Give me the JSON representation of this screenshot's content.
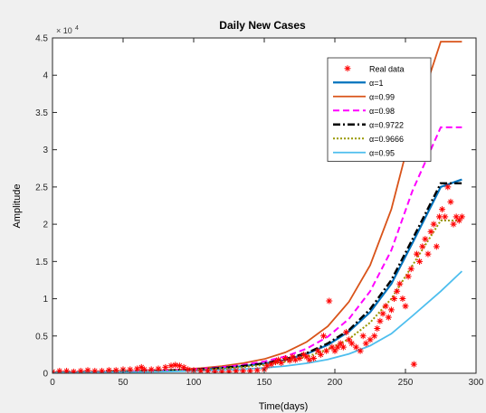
{
  "chart_data": {
    "type": "line",
    "title": "Daily New Cases",
    "xlabel": "Time(days)",
    "ylabel": "Amplitude",
    "exponent_label": "× 10",
    "exponent_power": "4",
    "xlim": [
      0,
      300
    ],
    "ylim": [
      0,
      4.5
    ],
    "xticks": [
      0,
      50,
      100,
      150,
      200,
      250,
      300
    ],
    "yticks": [
      0,
      0.5,
      1,
      1.5,
      2,
      2.5,
      3,
      3.5,
      4,
      4.5
    ],
    "xtick_labels": [
      "0",
      "50",
      "100",
      "150",
      "200",
      "250",
      "300"
    ],
    "ytick_labels": [
      "0",
      "0.5",
      "1",
      "1.5",
      "2",
      "2.5",
      "3",
      "3.5",
      "4",
      "4.5"
    ],
    "grid": false,
    "legend_position": "top-right",
    "scatter": {
      "name": "Real data",
      "color": "#ff0000",
      "points": [
        [
          0,
          0.02
        ],
        [
          5,
          0.03
        ],
        [
          10,
          0.03
        ],
        [
          15,
          0.02
        ],
        [
          20,
          0.03
        ],
        [
          25,
          0.04
        ],
        [
          30,
          0.03
        ],
        [
          35,
          0.03
        ],
        [
          40,
          0.04
        ],
        [
          45,
          0.04
        ],
        [
          50,
          0.05
        ],
        [
          55,
          0.05
        ],
        [
          60,
          0.06
        ],
        [
          63,
          0.08
        ],
        [
          65,
          0.05
        ],
        [
          70,
          0.05
        ],
        [
          75,
          0.06
        ],
        [
          80,
          0.08
        ],
        [
          84,
          0.1
        ],
        [
          87,
          0.11
        ],
        [
          90,
          0.1
        ],
        [
          93,
          0.08
        ],
        [
          96,
          0.05
        ],
        [
          100,
          0.04
        ],
        [
          105,
          0.03
        ],
        [
          110,
          0.03
        ],
        [
          115,
          0.02
        ],
        [
          120,
          0.02
        ],
        [
          125,
          0.02
        ],
        [
          130,
          0.03
        ],
        [
          135,
          0.03
        ],
        [
          140,
          0.03
        ],
        [
          145,
          0.04
        ],
        [
          150,
          0.05
        ],
        [
          152,
          0.1
        ],
        [
          155,
          0.12
        ],
        [
          158,
          0.15
        ],
        [
          160,
          0.18
        ],
        [
          162,
          0.14
        ],
        [
          165,
          0.2
        ],
        [
          168,
          0.17
        ],
        [
          170,
          0.22
        ],
        [
          172,
          0.18
        ],
        [
          175,
          0.2
        ],
        [
          178,
          0.25
        ],
        [
          180,
          0.22
        ],
        [
          182,
          0.18
        ],
        [
          185,
          0.2
        ],
        [
          188,
          0.3
        ],
        [
          190,
          0.25
        ],
        [
          192,
          0.5
        ],
        [
          194,
          0.3
        ],
        [
          196,
          0.97
        ],
        [
          198,
          0.35
        ],
        [
          200,
          0.3
        ],
        [
          202,
          0.35
        ],
        [
          204,
          0.4
        ],
        [
          206,
          0.35
        ],
        [
          208,
          0.55
        ],
        [
          210,
          0.45
        ],
        [
          212,
          0.4
        ],
        [
          215,
          0.35
        ],
        [
          218,
          0.3
        ],
        [
          220,
          0.5
        ],
        [
          222,
          0.4
        ],
        [
          225,
          0.45
        ],
        [
          228,
          0.5
        ],
        [
          230,
          0.6
        ],
        [
          232,
          0.7
        ],
        [
          234,
          0.8
        ],
        [
          236,
          0.9
        ],
        [
          238,
          0.75
        ],
        [
          240,
          0.85
        ],
        [
          242,
          1.0
        ],
        [
          244,
          1.1
        ],
        [
          246,
          1.2
        ],
        [
          248,
          1.0
        ],
        [
          250,
          0.9
        ],
        [
          252,
          1.3
        ],
        [
          254,
          1.4
        ],
        [
          256,
          0.12
        ],
        [
          258,
          1.6
        ],
        [
          260,
          1.5
        ],
        [
          262,
          1.7
        ],
        [
          264,
          1.8
        ],
        [
          266,
          1.6
        ],
        [
          268,
          1.9
        ],
        [
          270,
          2.0
        ],
        [
          272,
          1.7
        ],
        [
          274,
          2.1
        ],
        [
          276,
          2.2
        ],
        [
          278,
          2.1
        ],
        [
          280,
          2.5
        ],
        [
          282,
          2.3
        ],
        [
          284,
          2.0
        ],
        [
          286,
          2.1
        ],
        [
          288,
          2.05
        ],
        [
          290,
          2.1
        ]
      ]
    },
    "series": [
      {
        "name": "α=1",
        "color": "#0072bd",
        "dash": "solid",
        "width": 2.2,
        "values": [
          0.01,
          0.012,
          0.015,
          0.019,
          0.024,
          0.03,
          0.04,
          0.052,
          0.07,
          0.095,
          0.13,
          0.18,
          0.26,
          0.38,
          0.56,
          0.82,
          1.2,
          1.75,
          2.5,
          2.6
        ]
      },
      {
        "name": "α=0.99",
        "color": "#d95319",
        "dash": "solid",
        "width": 1.8,
        "values": [
          0.01,
          0.013,
          0.017,
          0.022,
          0.029,
          0.038,
          0.05,
          0.068,
          0.095,
          0.135,
          0.19,
          0.28,
          0.42,
          0.63,
          0.96,
          1.45,
          2.2,
          3.3,
          4.45,
          4.45
        ]
      },
      {
        "name": "α=0.98",
        "color": "#ff00ff",
        "dash": "dashed",
        "width": 2,
        "values": [
          0.01,
          0.012,
          0.016,
          0.02,
          0.026,
          0.034,
          0.045,
          0.06,
          0.082,
          0.113,
          0.158,
          0.225,
          0.33,
          0.49,
          0.73,
          1.1,
          1.65,
          2.45,
          3.3,
          3.3
        ]
      },
      {
        "name": "α=0.9722",
        "color": "#000000",
        "dash": "dashdot",
        "width": 2.4,
        "values": [
          0.01,
          0.012,
          0.015,
          0.019,
          0.024,
          0.031,
          0.04,
          0.053,
          0.071,
          0.097,
          0.134,
          0.19,
          0.27,
          0.4,
          0.58,
          0.86,
          1.25,
          1.8,
          2.55,
          2.55
        ]
      },
      {
        "name": "α=0.9666",
        "color": "#999900",
        "dash": "dotted",
        "width": 2,
        "values": [
          0.01,
          0.011,
          0.014,
          0.017,
          0.021,
          0.027,
          0.035,
          0.046,
          0.061,
          0.082,
          0.112,
          0.155,
          0.22,
          0.32,
          0.46,
          0.68,
          1.0,
          1.45,
          2.05,
          2.05
        ]
      },
      {
        "name": "α=0.95",
        "color": "#4dbeee",
        "dash": "solid",
        "width": 1.8,
        "values": [
          0.01,
          0.011,
          0.012,
          0.014,
          0.017,
          0.021,
          0.026,
          0.033,
          0.042,
          0.055,
          0.072,
          0.097,
          0.133,
          0.185,
          0.26,
          0.37,
          0.53,
          0.77,
          1.1,
          1.37
        ]
      }
    ],
    "series_x": [
      0,
      15,
      30,
      45,
      60,
      75,
      90,
      105,
      120,
      135,
      150,
      165,
      180,
      195,
      210,
      225,
      240,
      255,
      275,
      290
    ]
  }
}
